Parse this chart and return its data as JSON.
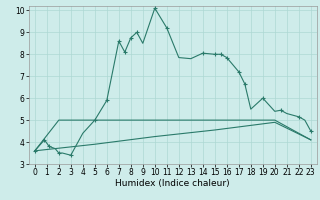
{
  "xlabel": "Humidex (Indice chaleur)",
  "bg_color": "#ceecea",
  "grid_color": "#aed8d4",
  "line_color": "#2a7a6a",
  "xlim": [
    -0.5,
    23.5
  ],
  "ylim": [
    3,
    10.2
  ],
  "xticks": [
    0,
    1,
    2,
    3,
    4,
    5,
    6,
    7,
    8,
    9,
    10,
    11,
    12,
    13,
    14,
    15,
    16,
    17,
    18,
    19,
    20,
    21,
    22,
    23
  ],
  "yticks": [
    3,
    4,
    5,
    6,
    7,
    8,
    9,
    10
  ],
  "curve1_x": [
    0,
    0.8,
    1.2,
    1.7,
    2.0,
    2.3,
    3.0,
    4.0,
    5.0,
    6.0,
    7.0,
    7.5,
    8.0,
    8.5,
    9.0,
    10.0,
    11.0,
    12.0,
    13.0,
    14.0,
    15.0,
    15.5,
    16.0,
    17.0,
    17.5,
    18.0,
    19.0,
    20.0,
    20.5,
    21.0,
    22.0,
    22.5,
    23.0
  ],
  "curve1_y": [
    3.6,
    4.1,
    3.8,
    3.7,
    3.5,
    3.5,
    3.4,
    4.4,
    5.0,
    5.9,
    8.6,
    8.1,
    8.75,
    9.0,
    8.5,
    10.1,
    9.2,
    7.85,
    7.8,
    8.05,
    8.0,
    8.0,
    7.85,
    7.2,
    6.65,
    5.5,
    6.0,
    5.4,
    5.45,
    5.3,
    5.15,
    5.0,
    4.5
  ],
  "curve2_x": [
    0,
    2.0,
    5.0,
    12.0,
    20.0,
    23.0
  ],
  "curve2_y": [
    3.6,
    5.0,
    5.0,
    5.0,
    5.0,
    4.1
  ],
  "curve3_x": [
    0,
    5.0,
    10.0,
    15.0,
    20.0,
    23.0
  ],
  "curve3_y": [
    3.6,
    3.9,
    4.25,
    4.55,
    4.9,
    4.1
  ],
  "marker1_x": [
    0,
    0.8,
    1.2,
    2.0,
    3.0,
    5.0,
    6.0,
    7.0,
    7.5,
    8.0,
    8.5,
    10.0,
    11.0,
    14.0,
    15.0,
    15.5,
    16.0,
    17.0,
    17.5,
    19.0,
    20.5,
    22.0,
    23.0
  ],
  "marker1_y": [
    3.6,
    4.1,
    3.8,
    3.5,
    3.4,
    5.0,
    5.9,
    8.6,
    8.1,
    8.75,
    9.0,
    10.1,
    9.2,
    8.05,
    8.0,
    8.0,
    7.85,
    7.2,
    6.65,
    6.0,
    5.45,
    5.15,
    4.5
  ],
  "xlabel_fontsize": 6.5,
  "tick_fontsize": 5.5
}
